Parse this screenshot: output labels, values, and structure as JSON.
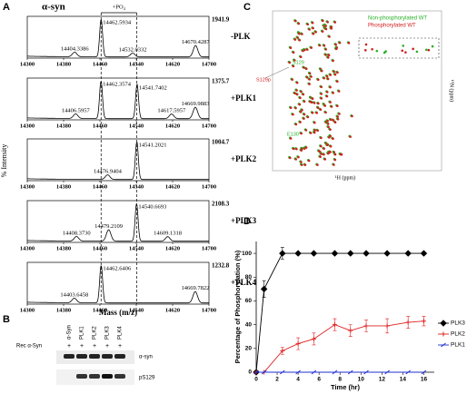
{
  "panel_a": {
    "letter": "A",
    "title": "α-syn",
    "annotation": "+PO₄",
    "y_label": "% Intensity",
    "x_label": "Mass (m/z)",
    "x_ticks": [
      "14300",
      "14380",
      "14460",
      "14540",
      "14620",
      "14700"
    ],
    "spectra": [
      {
        "condition": "-PLK",
        "max": "1941.9",
        "peaks": [
          "14404.3386",
          "14462.5934",
          "14532.0332",
          "14670.4287"
        ]
      },
      {
        "condition": "+PLK1",
        "max": "1375.7",
        "peaks": [
          "14406.5957",
          "14462.3574",
          "14541.7402",
          "14617.5957",
          "14669.9883"
        ]
      },
      {
        "condition": "+PLK2",
        "max": "1004.7",
        "peaks": [
          "14476.9404",
          "14541.2021"
        ]
      },
      {
        "condition": "+PLK3",
        "max": "2108.3",
        "peaks": [
          "14408.3730",
          "14479.2109",
          "14540.6693",
          "14609.1318"
        ]
      },
      {
        "condition": "+PLK4",
        "max": "1232.8",
        "peaks": [
          "14403.6458",
          "14462.6406",
          "14669.7822"
        ]
      }
    ]
  },
  "panel_b": {
    "letter": "B",
    "row_label": "Rec α-Syn",
    "columns": [
      "α-Syn",
      "PLK1",
      "PLK2",
      "PLK3",
      "PLK4"
    ],
    "marks": [
      "+",
      "+",
      "+",
      "+",
      "+"
    ],
    "bands": [
      "α-syn",
      "pS129"
    ]
  },
  "panel_c": {
    "letter": "C",
    "legend": [
      "Non-phosphorylated WT",
      "Phosphorylated WT"
    ],
    "labels": [
      "S129p",
      "S129",
      "E130"
    ],
    "x_label": "¹H (ppm)",
    "y_label": "¹⁵N (ppm)"
  },
  "panel_d": {
    "letter": "D"
  },
  "chart_data": {
    "type": "line",
    "x_label": "Time (hr)",
    "y_label": "Percentage of Phosphorylation (%)",
    "x": [
      0,
      0.75,
      2.5,
      4,
      5.5,
      7.5,
      9,
      10.5,
      12.5,
      14.5,
      16
    ],
    "series": [
      {
        "name": "PLK3",
        "color": "#000000",
        "values": [
          0,
          70,
          100,
          100,
          100,
          100,
          100,
          100,
          100,
          100,
          100
        ],
        "errors": [
          0,
          7,
          5,
          0,
          0,
          0,
          0,
          0,
          0,
          0,
          0
        ]
      },
      {
        "name": "PLK2",
        "color": "#e02020",
        "values": [
          0,
          0,
          18,
          24,
          28,
          40,
          35,
          39,
          39,
          42,
          43
        ],
        "errors": [
          0,
          0,
          3,
          5,
          5,
          5,
          5,
          5,
          6,
          5,
          4
        ]
      },
      {
        "name": "PLK1",
        "color": "#2030d0",
        "values": [
          0,
          0,
          0,
          0,
          0,
          0,
          0,
          0,
          0,
          0,
          0
        ]
      }
    ],
    "xlim": [
      0,
      17
    ],
    "xticks": [
      0,
      2,
      4,
      6,
      8,
      10,
      12,
      14,
      16
    ],
    "ylim": [
      0,
      110
    ],
    "yticks": [
      0,
      20,
      40,
      60,
      80,
      100
    ]
  }
}
